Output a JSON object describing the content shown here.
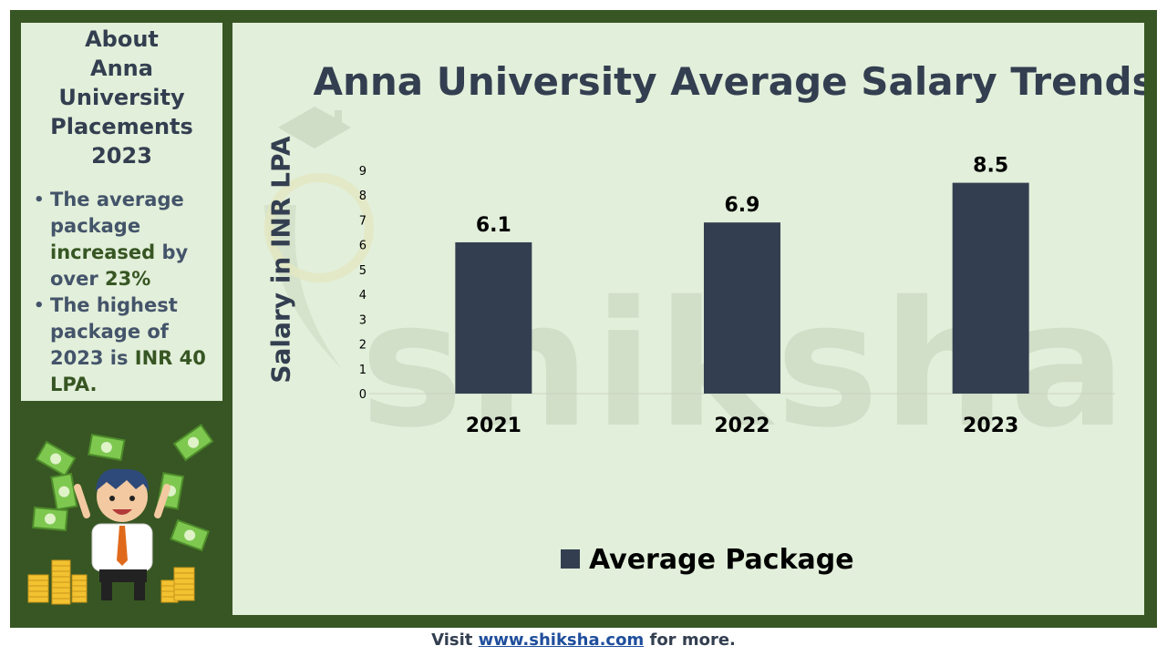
{
  "side": {
    "title_lines": [
      "About",
      "Anna",
      "University",
      "Placements",
      "2023"
    ],
    "bullet1": {
      "a": "The average package ",
      "b": "increased",
      "c": " by over ",
      "d": "23%"
    },
    "bullet2": {
      "a": "The highest package of 2023 is ",
      "b": "INR 40 LPA."
    }
  },
  "watermark": "shiksha",
  "footer": {
    "prefix": "Visit ",
    "link": "www.shiksha.com",
    "suffix": " for more."
  },
  "colors": {
    "bar": "#333f50",
    "panel": "#e2efda",
    "frame": "#375623",
    "highlight": "#375623"
  },
  "chart_data": {
    "type": "bar",
    "title": "Anna University Average Salary Trends",
    "xlabel": "",
    "ylabel": "Salary in INR LPA",
    "categories": [
      "2021",
      "2022",
      "2023"
    ],
    "series": [
      {
        "name": "Average Package",
        "values": [
          6.1,
          6.9,
          8.5
        ]
      }
    ],
    "ylim": [
      0,
      9
    ],
    "yticks": [
      0,
      1,
      2,
      3,
      4,
      5,
      6,
      7,
      8,
      9
    ],
    "grid": false,
    "legend": "bottom"
  }
}
